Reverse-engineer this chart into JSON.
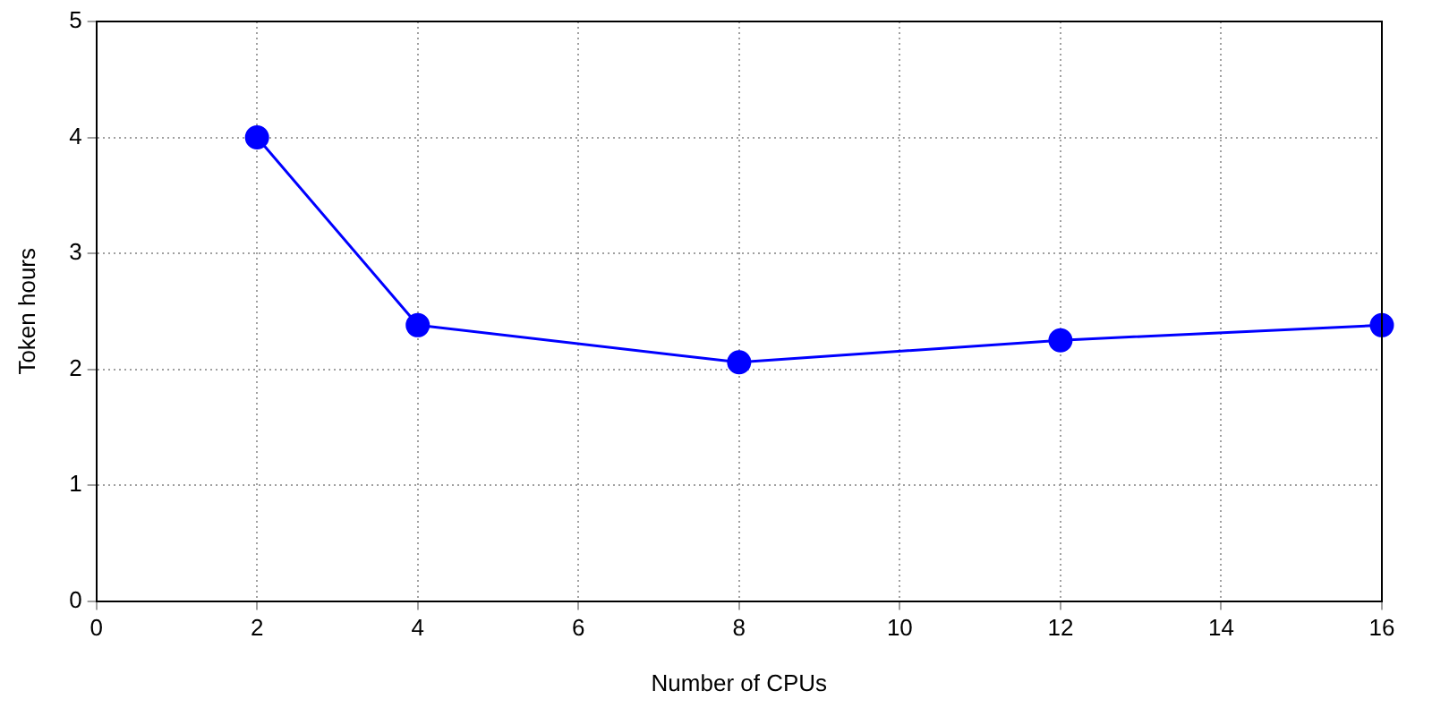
{
  "chart_data": {
    "type": "line",
    "xlabel": "Number of CPUs",
    "ylabel": "Token hours",
    "x": [
      2,
      4,
      8,
      12,
      16
    ],
    "series": [
      {
        "color": "#0000ff",
        "values": [
          4.0,
          2.38,
          2.06,
          2.25,
          2.38
        ]
      }
    ],
    "xlim": [
      0,
      16
    ],
    "xticks": [
      0,
      2,
      4,
      6,
      8,
      10,
      12,
      14,
      16
    ],
    "ylim": [
      0,
      5
    ],
    "yticks": [
      0,
      1,
      2,
      3,
      4,
      5
    ],
    "grid": true,
    "legend": false,
    "marker": "circle",
    "line_style": "solid"
  }
}
